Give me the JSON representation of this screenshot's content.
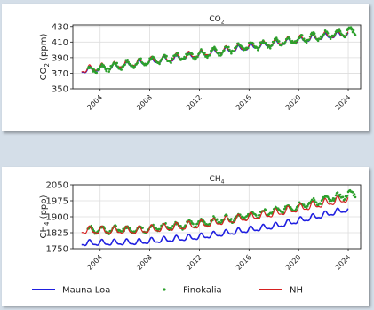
{
  "chart_data": [
    {
      "type": "line",
      "title": "CO",
      "title_sub": "2",
      "ylabel": "CO",
      "ylabel_sub": "2",
      "ylabel_unit": " (ppm)",
      "xlim": [
        2001.8,
        2025.0
      ],
      "ylim": [
        350,
        432
      ],
      "yticks": [
        350,
        370,
        390,
        410,
        430
      ],
      "xticks": [
        "2004",
        "2008",
        "2012",
        "2016",
        "2020",
        "2024"
      ],
      "xtick_values": [
        2004,
        2008,
        2012,
        2016,
        2020,
        2024
      ],
      "grid": true,
      "series": [
        {
          "name": "Mauna Loa",
          "color": "#1f1fe0",
          "style": "line",
          "trend": {
            "x": [
              2002.5,
              2010,
              2018,
              2024.0
            ],
            "y": [
              373,
              389,
              408,
              421
            ]
          },
          "seasonal_amplitude": 3.2
        },
        {
          "name": "NH",
          "color": "#d62020",
          "style": "line",
          "trend": {
            "x": [
              2002.5,
              2010,
              2018,
              2024.0
            ],
            "y": [
              374,
              390,
              409,
              422
            ]
          },
          "seasonal_amplitude": 4.0
        },
        {
          "name": "Finokalia",
          "color": "#2ca02c",
          "style": "markers",
          "trend": {
            "x": [
              2003.0,
              2010,
              2018,
              2024.5
            ],
            "y": [
              374,
              390,
              409,
              424
            ]
          },
          "seasonal_amplitude": 4.2,
          "range": [
            2003.0,
            2024.6
          ]
        }
      ]
    },
    {
      "type": "line",
      "title": "CH",
      "title_sub": "4",
      "ylabel": "CH",
      "ylabel_sub": "4",
      "ylabel_unit": " (ppb)",
      "xlim": [
        2001.8,
        2025.0
      ],
      "ylim": [
        1750,
        2050
      ],
      "yticks": [
        1750,
        1825,
        1900,
        1975,
        2050
      ],
      "xticks": [
        "2004",
        "2008",
        "2012",
        "2016",
        "2020",
        "2024"
      ],
      "xtick_values": [
        2004,
        2008,
        2012,
        2016,
        2020,
        2024
      ],
      "grid": true,
      "legend_position": "bottom",
      "series": [
        {
          "name": "Mauna Loa",
          "color": "#1f1fe0",
          "style": "line",
          "trend": {
            "x": [
              2002.5,
              2007,
              2012,
              2018,
              2024.0
            ],
            "y": [
              1775,
              1780,
              1805,
              1855,
              1935
            ]
          },
          "seasonal_amplitude": 12
        },
        {
          "name": "Finokalia",
          "color": "#2ca02c",
          "style": "markers",
          "trend": {
            "x": [
              2003.0,
              2007,
              2012,
              2018,
              2024.5
            ],
            "y": [
              1840,
              1840,
              1870,
              1925,
              2010
            ]
          },
          "seasonal_amplitude": 14,
          "range": [
            2003.0,
            2024.6
          ]
        },
        {
          "name": "NH",
          "color": "#d62020",
          "style": "line",
          "trend": {
            "x": [
              2002.5,
              2007,
              2012,
              2018,
              2024.0
            ],
            "y": [
              1835,
              1835,
              1862,
              1915,
              1985
            ]
          },
          "seasonal_amplitude": 16
        }
      ]
    }
  ]
}
